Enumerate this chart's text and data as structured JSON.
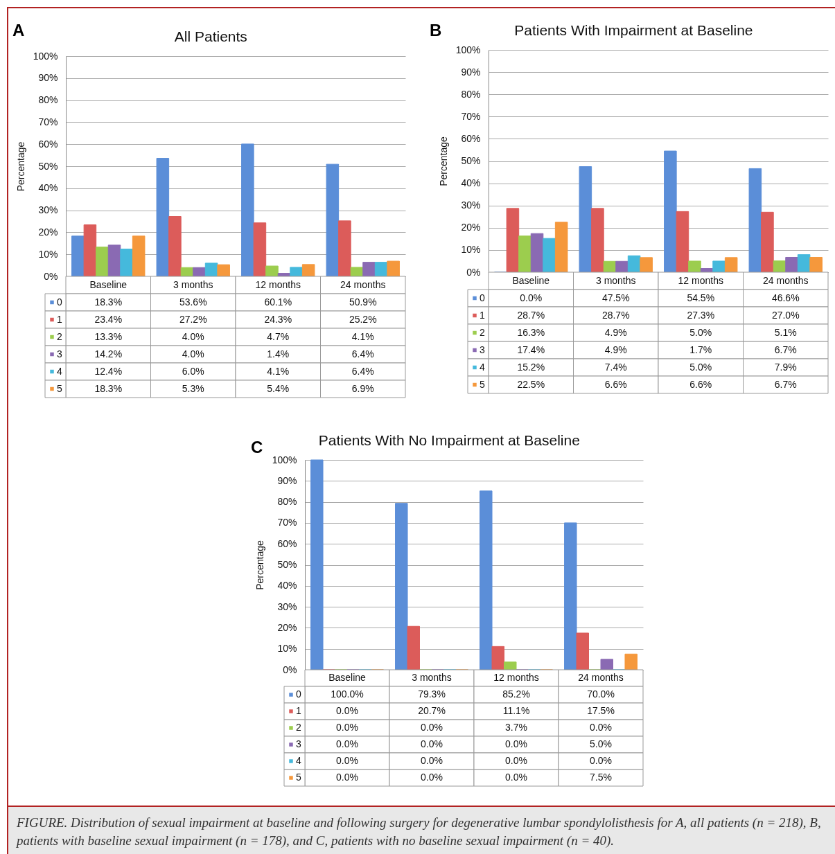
{
  "chart_data": [
    {
      "type": "bar",
      "title": "All Patients",
      "ylabel": "Percentage",
      "categories": [
        "Baseline",
        "3 months",
        "12 months",
        "24 months"
      ],
      "ylim": [
        0,
        100
      ],
      "yticks": [
        {
          "value": 0,
          "label": "0%"
        },
        {
          "value": 10,
          "label": "10%"
        },
        {
          "value": 20,
          "label": "20%"
        },
        {
          "value": 30,
          "label": "30%"
        },
        {
          "value": 40,
          "label": "40%"
        },
        {
          "value": 50,
          "label": "50%"
        },
        {
          "value": 60,
          "label": "60%"
        },
        {
          "value": 70,
          "label": "70%"
        },
        {
          "value": 80,
          "label": "80%"
        },
        {
          "value": 90,
          "label": "90%"
        },
        {
          "value": 100,
          "label": "100%"
        }
      ],
      "grid": "y",
      "legend": "bottom",
      "annotations": [
        "A"
      ],
      "series": [
        {
          "name": "0",
          "color": "#5b8ed8",
          "values": [
            18.3,
            53.6,
            60.1,
            50.9
          ],
          "value_labels": [
            "18.3%",
            "53.6%",
            "60.1%",
            "50.9%"
          ]
        },
        {
          "name": "1",
          "color": "#dc5c5a",
          "values": [
            23.4,
            27.2,
            24.3,
            25.2
          ],
          "value_labels": [
            "23.4%",
            "27.2%",
            "24.3%",
            "25.2%"
          ]
        },
        {
          "name": "2",
          "color": "#9ccd4e",
          "values": [
            13.3,
            4.0,
            4.7,
            4.1
          ],
          "value_labels": [
            "13.3%",
            "4.0%",
            "4.7%",
            "4.1%"
          ]
        },
        {
          "name": "3",
          "color": "#8a6ab3",
          "values": [
            14.2,
            4.0,
            1.4,
            6.4
          ],
          "value_labels": [
            "14.2%",
            "4.0%",
            "1.4%",
            "6.4%"
          ]
        },
        {
          "name": "4",
          "color": "#45b9dc",
          "values": [
            12.4,
            6.0,
            4.1,
            6.4
          ],
          "value_labels": [
            "12.4%",
            "6.0%",
            "4.1%",
            "6.4%"
          ]
        },
        {
          "name": "5",
          "color": "#f5983c",
          "values": [
            18.3,
            5.3,
            5.4,
            6.9
          ],
          "value_labels": [
            "18.3%",
            "5.3%",
            "5.4%",
            "6.9%"
          ]
        }
      ]
    },
    {
      "type": "bar",
      "title": "Patients With Impairment at Baseline",
      "ylabel": "Percentage",
      "categories": [
        "Baseline",
        "3 months",
        "12 months",
        "24 months"
      ],
      "ylim": [
        0,
        100
      ],
      "yticks": [
        {
          "value": 0,
          "label": "0%"
        },
        {
          "value": 10,
          "label": "10%"
        },
        {
          "value": 20,
          "label": "20%"
        },
        {
          "value": 30,
          "label": "30%"
        },
        {
          "value": 40,
          "label": "40%"
        },
        {
          "value": 50,
          "label": "50%"
        },
        {
          "value": 60,
          "label": "60%"
        },
        {
          "value": 70,
          "label": "70%"
        },
        {
          "value": 80,
          "label": "80%"
        },
        {
          "value": 90,
          "label": "90%"
        },
        {
          "value": 100,
          "label": "100%"
        }
      ],
      "grid": "y",
      "legend": "bottom",
      "annotations": [
        "B"
      ],
      "series": [
        {
          "name": "0",
          "color": "#5b8ed8",
          "values": [
            0.0,
            47.5,
            54.5,
            46.6
          ],
          "value_labels": [
            "0.0%",
            "47.5%",
            "54.5%",
            "46.6%"
          ]
        },
        {
          "name": "1",
          "color": "#dc5c5a",
          "values": [
            28.7,
            28.7,
            27.3,
            27.0
          ],
          "value_labels": [
            "28.7%",
            "28.7%",
            "27.3%",
            "27.0%"
          ]
        },
        {
          "name": "2",
          "color": "#9ccd4e",
          "values": [
            16.3,
            4.9,
            5.0,
            5.1
          ],
          "value_labels": [
            "16.3%",
            "4.9%",
            "5.0%",
            "5.1%"
          ]
        },
        {
          "name": "3",
          "color": "#8a6ab3",
          "values": [
            17.4,
            4.9,
            1.7,
            6.7
          ],
          "value_labels": [
            "17.4%",
            "4.9%",
            "1.7%",
            "6.7%"
          ]
        },
        {
          "name": "4",
          "color": "#45b9dc",
          "values": [
            15.2,
            7.4,
            5.0,
            7.9
          ],
          "value_labels": [
            "15.2%",
            "7.4%",
            "5.0%",
            "7.9%"
          ]
        },
        {
          "name": "5",
          "color": "#f5983c",
          "values": [
            22.5,
            6.6,
            6.6,
            6.7
          ],
          "value_labels": [
            "22.5%",
            "6.6%",
            "6.6%",
            "6.7%"
          ]
        }
      ]
    },
    {
      "type": "bar",
      "title": "Patients With No Impairment at Baseline",
      "ylabel": "Percentage",
      "categories": [
        "Baseline",
        "3 months",
        "12 months",
        "24 months"
      ],
      "ylim": [
        0,
        100
      ],
      "yticks": [
        {
          "value": 0,
          "label": "0%"
        },
        {
          "value": 10,
          "label": "10%"
        },
        {
          "value": 20,
          "label": "20%"
        },
        {
          "value": 30,
          "label": "30%"
        },
        {
          "value": 40,
          "label": "40%"
        },
        {
          "value": 50,
          "label": "50%"
        },
        {
          "value": 60,
          "label": "60%"
        },
        {
          "value": 70,
          "label": "70%"
        },
        {
          "value": 80,
          "label": "80%"
        },
        {
          "value": 90,
          "label": "90%"
        },
        {
          "value": 100,
          "label": "100%"
        }
      ],
      "grid": "y",
      "legend": "bottom",
      "annotations": [
        "C",
        "FIGURE. Distribution of sexual impairment at baseline and following surgery for degenerative lumbar spondylolisthesis for A, all patients (n = 218), B, patients with baseline sexual impairment (n = 178), and C, patients with no baseline sexual impairment (n = 40)."
      ],
      "series": [
        {
          "name": "0",
          "color": "#5b8ed8",
          "values": [
            100.0,
            79.3,
            85.2,
            70.0
          ],
          "value_labels": [
            "100.0%",
            "79.3%",
            "85.2%",
            "70.0%"
          ]
        },
        {
          "name": "1",
          "color": "#dc5c5a",
          "values": [
            0.0,
            20.7,
            11.1,
            17.5
          ],
          "value_labels": [
            "0.0%",
            "20.7%",
            "11.1%",
            "17.5%"
          ]
        },
        {
          "name": "2",
          "color": "#9ccd4e",
          "values": [
            0.0,
            0.0,
            3.7,
            0.0
          ],
          "value_labels": [
            "0.0%",
            "0.0%",
            "3.7%",
            "0.0%"
          ]
        },
        {
          "name": "3",
          "color": "#8a6ab3",
          "values": [
            0.0,
            0.0,
            0.0,
            5.0
          ],
          "value_labels": [
            "0.0%",
            "0.0%",
            "0.0%",
            "5.0%"
          ]
        },
        {
          "name": "4",
          "color": "#45b9dc",
          "values": [
            0.0,
            0.0,
            0.0,
            0.0
          ],
          "value_labels": [
            "0.0%",
            "0.0%",
            "0.0%",
            "0.0%"
          ]
        },
        {
          "name": "5",
          "color": "#f5983c",
          "values": [
            0.0,
            0.0,
            0.0,
            7.5
          ],
          "value_labels": [
            "0.0%",
            "0.0%",
            "0.0%",
            "7.5%"
          ]
        }
      ]
    }
  ]
}
